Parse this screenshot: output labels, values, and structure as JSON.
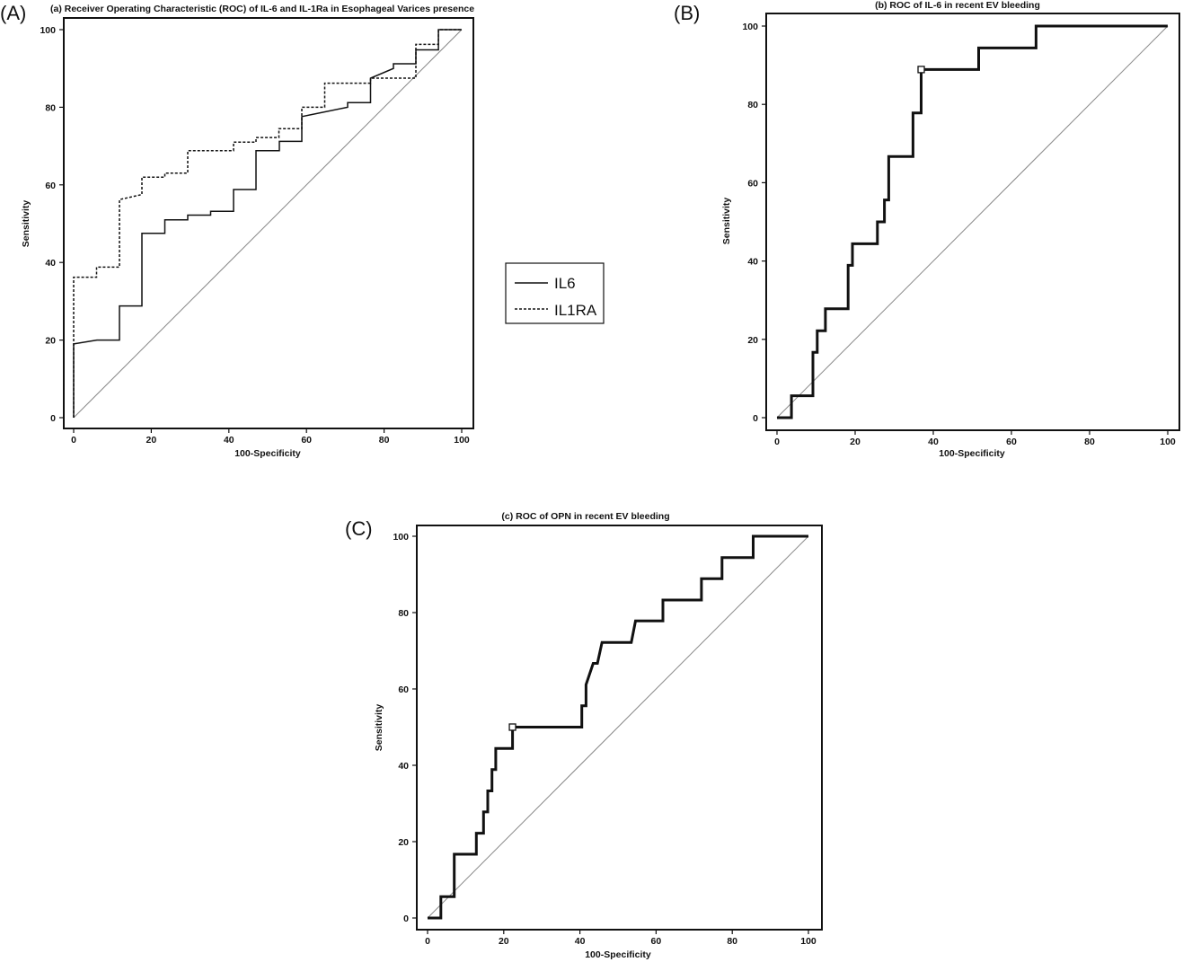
{
  "panel_labels": [
    "(A)",
    "(B)",
    "(C)"
  ],
  "legend": {
    "entries": [
      {
        "label": "IL6",
        "style": "solid"
      },
      {
        "label": "IL1RA",
        "style": "dashed"
      }
    ]
  },
  "chart_data": [
    {
      "type": "line",
      "title": "(a) Receiver Operating Characteristic (ROC) of  IL-6 and IL-1Ra in Esophageal Varices presence",
      "xlabel": "100-Specificity",
      "ylabel": "Sensitivity",
      "xlim": [
        0,
        100
      ],
      "ylim": [
        0,
        100
      ],
      "xticks": [
        "0",
        "20",
        "40",
        "60",
        "80",
        "100"
      ],
      "yticks": [
        "0",
        "20",
        "40",
        "60",
        "80",
        "100"
      ],
      "grid": false,
      "reference_line": true,
      "legend_position": "right, outside",
      "series": [
        {
          "name": "IL6",
          "style": "solid",
          "points": [
            [
              0,
              0
            ],
            [
              0,
              19
            ],
            [
              6,
              20
            ],
            [
              11.8,
              20
            ],
            [
              11.8,
              28.8
            ],
            [
              17.6,
              28.8
            ],
            [
              17.6,
              47.5
            ],
            [
              23.5,
              47.5
            ],
            [
              23.5,
              51
            ],
            [
              29.4,
              51
            ],
            [
              29.4,
              52.2
            ],
            [
              35.3,
              52.2
            ],
            [
              35.3,
              53.2
            ],
            [
              41.2,
              53.2
            ],
            [
              41.2,
              58.8
            ],
            [
              47,
              58.8
            ],
            [
              47,
              68.8
            ],
            [
              53,
              68.8
            ],
            [
              53,
              71.2
            ],
            [
              58.8,
              71.2
            ],
            [
              58.8,
              77.6
            ],
            [
              70.6,
              80
            ],
            [
              70.6,
              81.2
            ],
            [
              76.5,
              81.2
            ],
            [
              76.5,
              87.5
            ],
            [
              82.4,
              90
            ],
            [
              82.4,
              91.2
            ],
            [
              88.2,
              91.2
            ],
            [
              88.2,
              94.8
            ],
            [
              94,
              94.8
            ],
            [
              94,
              100
            ],
            [
              100,
              100
            ]
          ]
        },
        {
          "name": "IL1RA",
          "style": "dashed",
          "points": [
            [
              0,
              0
            ],
            [
              0,
              36.2
            ],
            [
              5.9,
              36.2
            ],
            [
              5.9,
              38.8
            ],
            [
              11.8,
              38.8
            ],
            [
              11.8,
              56.2
            ],
            [
              17.6,
              57.5
            ],
            [
              17.6,
              62
            ],
            [
              23.5,
              62
            ],
            [
              23.5,
              63
            ],
            [
              29.4,
              63
            ],
            [
              29.4,
              68.8
            ],
            [
              41.2,
              68.8
            ],
            [
              41.2,
              71
            ],
            [
              47,
              71
            ],
            [
              47,
              72.2
            ],
            [
              52.9,
              72.2
            ],
            [
              52.9,
              74.5
            ],
            [
              58.8,
              74.5
            ],
            [
              58.8,
              80
            ],
            [
              64.7,
              80
            ],
            [
              64.7,
              86.2
            ],
            [
              76.5,
              86.2
            ],
            [
              76.5,
              87.5
            ],
            [
              88.2,
              87.5
            ],
            [
              88.2,
              96.2
            ],
            [
              94,
              96.2
            ],
            [
              94,
              100
            ],
            [
              100,
              100
            ]
          ]
        }
      ]
    },
    {
      "type": "line",
      "title": "(b) ROC of  IL-6 in recent EV bleeding",
      "xlabel": "100-Specificity",
      "ylabel": "Sensitivity",
      "xlim": [
        0,
        100
      ],
      "ylim": [
        0,
        100
      ],
      "xticks": [
        "0",
        "20",
        "40",
        "60",
        "80",
        "100"
      ],
      "yticks": [
        "0",
        "20",
        "40",
        "60",
        "80",
        "100"
      ],
      "grid": false,
      "reference_line": true,
      "series": [
        {
          "style": "thick",
          "points": [
            [
              0,
              0
            ],
            [
              3.7,
              0
            ],
            [
              3.7,
              5.6
            ],
            [
              9.2,
              5.6
            ],
            [
              9.2,
              16.7
            ],
            [
              10.3,
              16.7
            ],
            [
              10.3,
              22.2
            ],
            [
              12.4,
              22.2
            ],
            [
              12.4,
              27.8
            ],
            [
              18.2,
              27.8
            ],
            [
              18.2,
              38.9
            ],
            [
              19.3,
              38.9
            ],
            [
              19.3,
              44.4
            ],
            [
              25.7,
              44.4
            ],
            [
              25.7,
              50
            ],
            [
              27.5,
              50
            ],
            [
              27.5,
              55.6
            ],
            [
              28.6,
              55.6
            ],
            [
              28.6,
              66.7
            ],
            [
              34.8,
              66.7
            ],
            [
              34.8,
              77.8
            ],
            [
              36.9,
              77.8
            ],
            [
              36.9,
              88.9
            ],
            [
              51.6,
              88.9
            ],
            [
              51.6,
              94.4
            ],
            [
              66.3,
              94.4
            ],
            [
              66.3,
              100
            ],
            [
              100,
              100
            ]
          ]
        }
      ],
      "cutoff_point": [
        36.9,
        88.9
      ]
    },
    {
      "type": "line",
      "title": "(c) ROC of  OPN in recent EV bleeding",
      "xlabel": "100-Specificity",
      "ylabel": "Sensitivity",
      "xlim": [
        0,
        100
      ],
      "ylim": [
        0,
        100
      ],
      "xticks": [
        "0",
        "20",
        "40",
        "60",
        "80",
        "100"
      ],
      "yticks": [
        "0",
        "20",
        "40",
        "60",
        "80",
        "100"
      ],
      "grid": false,
      "reference_line": true,
      "series": [
        {
          "style": "thick",
          "points": [
            [
              0,
              0
            ],
            [
              3.5,
              0
            ],
            [
              3.5,
              5.6
            ],
            [
              7,
              5.6
            ],
            [
              7,
              16.7
            ],
            [
              12.8,
              16.7
            ],
            [
              12.8,
              22.2
            ],
            [
              14.7,
              22.2
            ],
            [
              14.7,
              27.8
            ],
            [
              15.8,
              27.8
            ],
            [
              15.8,
              33.3
            ],
            [
              16.9,
              33.3
            ],
            [
              16.9,
              38.9
            ],
            [
              17.9,
              38.9
            ],
            [
              17.9,
              44.4
            ],
            [
              22.3,
              44.4
            ],
            [
              22.3,
              50
            ],
            [
              40.5,
              50
            ],
            [
              40.5,
              55.6
            ],
            [
              41.6,
              55.6
            ],
            [
              41.6,
              61.1
            ],
            [
              43.5,
              66.7
            ],
            [
              44.6,
              66.7
            ],
            [
              45.8,
              72.2
            ],
            [
              53.5,
              72.2
            ],
            [
              54.6,
              77.8
            ],
            [
              61.8,
              77.8
            ],
            [
              61.8,
              83.3
            ],
            [
              71.9,
              83.3
            ],
            [
              71.9,
              88.9
            ],
            [
              77.3,
              88.9
            ],
            [
              77.3,
              94.4
            ],
            [
              85.5,
              94.4
            ],
            [
              85.5,
              100
            ],
            [
              100,
              100
            ]
          ]
        }
      ],
      "cutoff_point": [
        22.3,
        50
      ]
    }
  ]
}
